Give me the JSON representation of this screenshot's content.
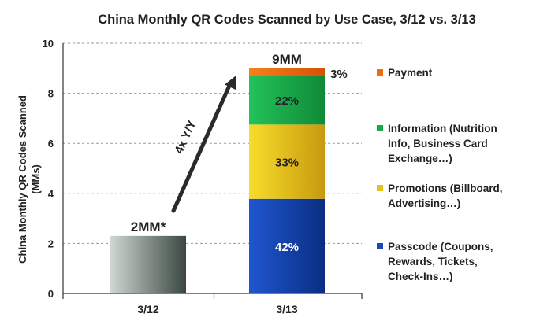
{
  "chart_data": {
    "type": "bar",
    "stacked": true,
    "title": "China Monthly QR Codes Scanned by Use Case, 3/12 vs. 3/13",
    "ylabel_line1": "China Monthly QR Codes Scanned",
    "ylabel_line2": "(MMs)",
    "xlabel": "",
    "ylim": [
      0,
      10
    ],
    "yticks": [
      "0",
      "2",
      "4",
      "6",
      "8",
      "10"
    ],
    "grid": "horizontal-dashed",
    "categories": [
      "3/12",
      "3/13"
    ],
    "total_labels": [
      "2MM*",
      "9MM"
    ],
    "series": [
      {
        "key": "total_3_12",
        "values": [
          2.3,
          0
        ],
        "color": "#3f4d44",
        "gradient_light": "#cfd7d3",
        "gradient_dark": "#3a4740"
      },
      {
        "key": "passcode",
        "values": [
          0,
          3.78
        ],
        "color": "#1a48b8",
        "gradient_light": "#1f56d0",
        "gradient_dark": "#0a2e82",
        "label": "42%"
      },
      {
        "key": "promotions",
        "values": [
          0,
          2.97
        ],
        "color": "#e8c21c",
        "gradient_light": "#f7dd2a",
        "gradient_dark": "#c79a10",
        "label": "33%"
      },
      {
        "key": "information",
        "values": [
          0,
          1.98
        ],
        "color": "#18a84a",
        "gradient_light": "#23c25a",
        "gradient_dark": "#0f8a37",
        "label": "22%"
      },
      {
        "key": "payment",
        "values": [
          0,
          0.27
        ],
        "color": "#f06a10",
        "gradient_light": "#f7801c",
        "gradient_dark": "#d45206",
        "label": "3%"
      }
    ],
    "legend": {
      "position": "right",
      "entries": [
        {
          "color": "#f06a10",
          "lines": [
            "Payment"
          ]
        },
        {
          "color": "#18a84a",
          "lines": [
            "Information (Nutrition",
            "Info, Business Card",
            "Exchange…)"
          ]
        },
        {
          "color": "#e8c21c",
          "lines": [
            "Promotions (Billboard,",
            "Advertising…)"
          ]
        },
        {
          "color": "#1a48b8",
          "lines": [
            "Passcode (Coupons,",
            "Rewards, Tickets,",
            "Check-Ins…)"
          ]
        }
      ]
    },
    "annotation": {
      "text": "4x Y/Y",
      "type": "arrow",
      "from": {
        "category": "3/12",
        "value": 3.3
      },
      "to": {
        "category": "3/13",
        "value": 8.7
      }
    }
  }
}
